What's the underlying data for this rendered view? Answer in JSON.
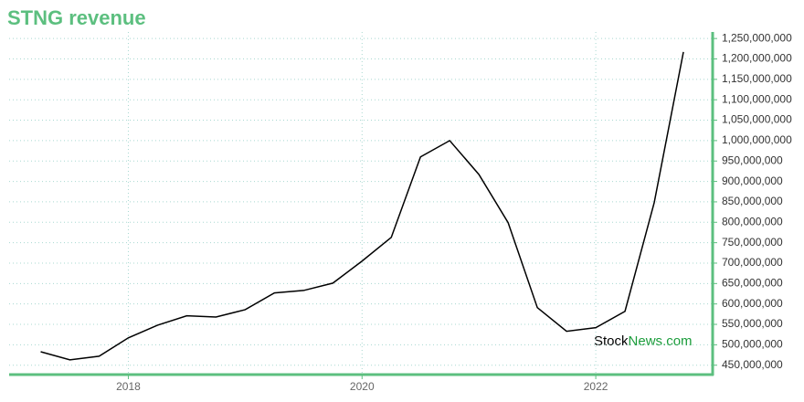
{
  "chart_data": {
    "type": "line",
    "title": "STNG revenue",
    "watermark": {
      "first": "Stock",
      "second": "News.com"
    },
    "x": [
      2017.25,
      2017.5,
      2017.75,
      2018,
      2018.25,
      2018.5,
      2018.75,
      2019,
      2019.25,
      2019.5,
      2019.75,
      2020,
      2020.25,
      2020.5,
      2020.75,
      2021,
      2021.25,
      2021.5,
      2021.75,
      2022,
      2022.25,
      2022.5,
      2022.75
    ],
    "series": [
      {
        "name": "STNG revenue",
        "color": "#000000",
        "values": [
          483000000,
          463000000,
          472000000,
          517000000,
          548000000,
          571000000,
          568000000,
          586000000,
          627000000,
          633000000,
          651000000,
          705000000,
          763000000,
          960000000,
          1000000000,
          917000000,
          799000000,
          591000000,
          533000000,
          542000000,
          582000000,
          848000000,
          1217000000
        ]
      }
    ],
    "xlim": [
      2016.98,
      2023
    ],
    "xticks": [
      2018,
      2020,
      2022
    ],
    "ylim": [
      427000000,
      1266000000
    ],
    "yticks": [
      {
        "value": 450000000,
        "label": "450,000,000"
      },
      {
        "value": 500000000,
        "label": "500,000,000"
      },
      {
        "value": 550000000,
        "label": "550,000,000"
      },
      {
        "value": 600000000,
        "label": "600,000,000"
      },
      {
        "value": 650000000,
        "label": "650,000,000"
      },
      {
        "value": 700000000,
        "label": "700,000,000"
      },
      {
        "value": 750000000,
        "label": "750,000,000"
      },
      {
        "value": 800000000,
        "label": "800,000,000"
      },
      {
        "value": 850000000,
        "label": "850,000,000"
      },
      {
        "value": 900000000,
        "label": "900,000,000"
      },
      {
        "value": 950000000,
        "label": "950,000,000"
      },
      {
        "value": 1000000000,
        "label": "1,000,000,000"
      },
      {
        "value": 1050000000,
        "label": "1,050,000,000"
      },
      {
        "value": 1100000000,
        "label": "1,100,000,000"
      },
      {
        "value": 1150000000,
        "label": "1,150,000,000"
      },
      {
        "value": 1200000000,
        "label": "1,200,000,000"
      },
      {
        "value": 1250000000,
        "label": "1,250,000,000"
      }
    ],
    "grid": true,
    "axis_color": "#5cbf7f"
  }
}
